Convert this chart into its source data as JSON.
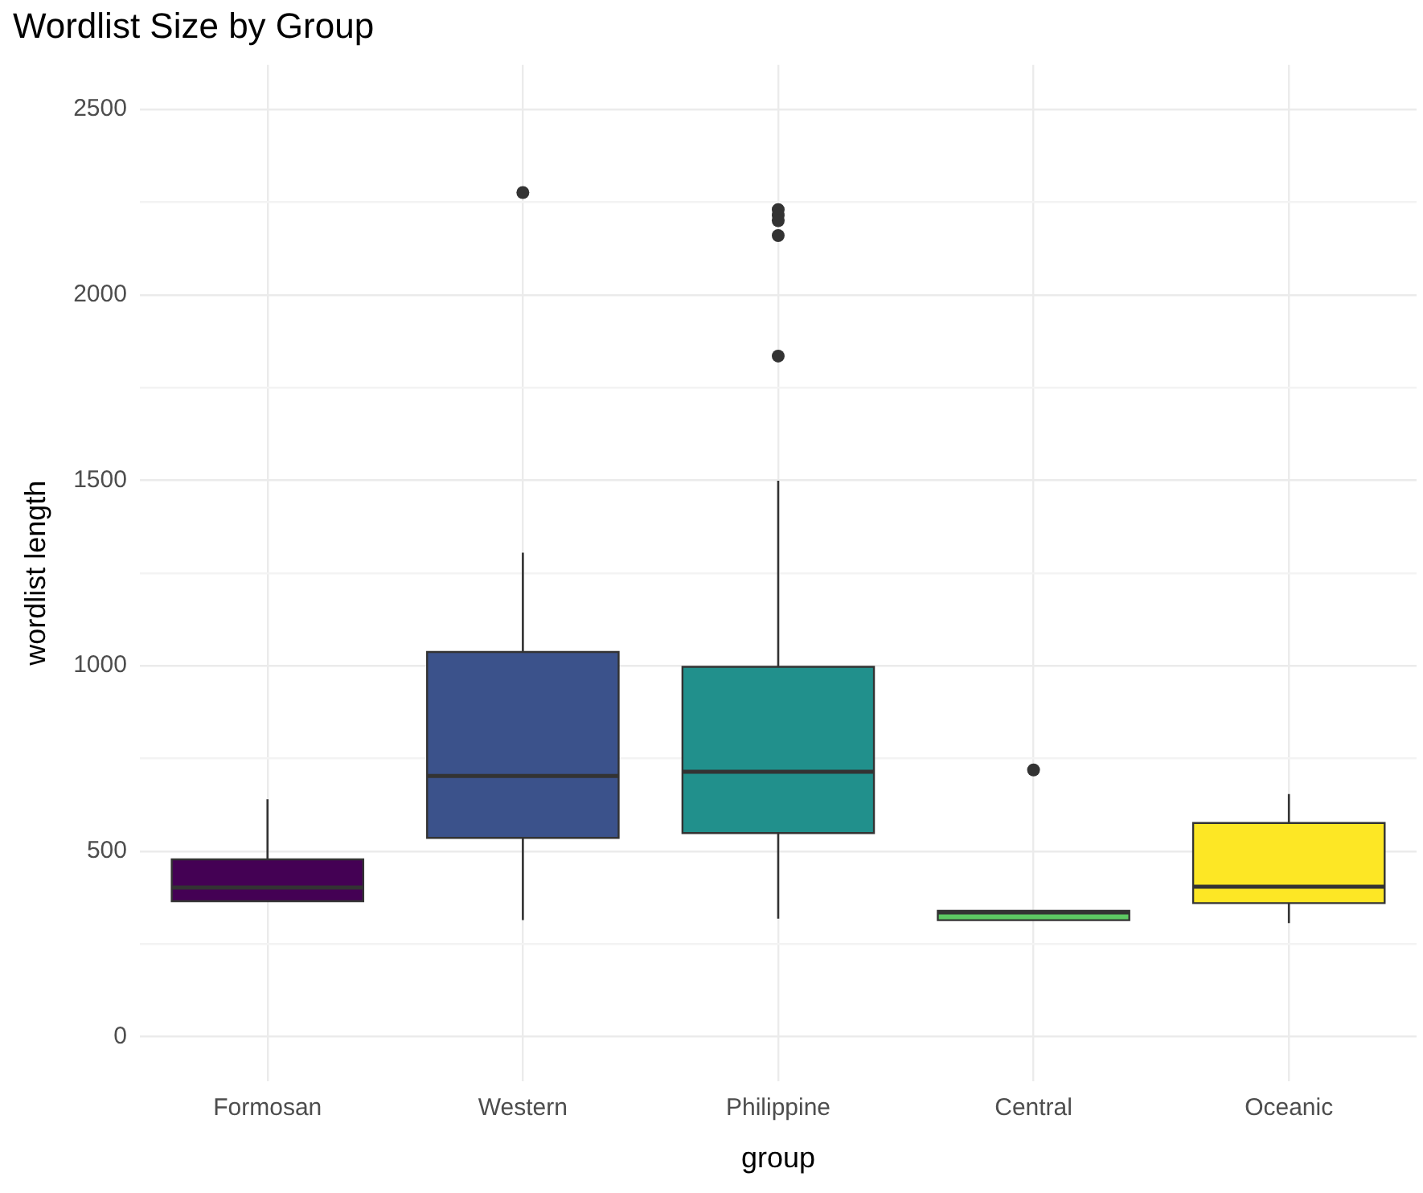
{
  "chart_data": {
    "type": "box",
    "title": "Wordlist Size by Group",
    "xlabel": "group",
    "ylabel": "wordlist length",
    "categories": [
      "Formosan",
      "Western",
      "Philippine",
      "Central",
      "Oceanic"
    ],
    "colors": [
      "#440154",
      "#3b528b",
      "#21908c",
      "#5dc863",
      "#fde725"
    ],
    "boxes": [
      {
        "low": 365,
        "q1": 365,
        "median": 402,
        "q3": 478,
        "high": 640
      },
      {
        "low": 314,
        "q1": 536,
        "median": 703,
        "q3": 1037,
        "high": 1305,
        "outliers": [
          2276
        ]
      },
      {
        "low": 318,
        "q1": 549,
        "median": 714,
        "q3": 997,
        "high": 1499,
        "outliers": [
          2230,
          2215,
          2200,
          2160,
          1835
        ]
      },
      {
        "low": 314,
        "q1": 314,
        "median": 335,
        "q3": 339,
        "high": 339,
        "outliers": [
          719
        ]
      },
      {
        "low": 306,
        "q1": 360,
        "median": 404,
        "q3": 576,
        "high": 654
      }
    ],
    "ylim": [
      -120,
      2620
    ],
    "yticks": [
      0,
      {
        "value": 250,
        "label": null
      },
      500,
      {
        "value": 750,
        "label": null
      },
      1000,
      {
        "value": 1250,
        "label": null
      },
      1500,
      {
        "value": 1750,
        "label": null
      },
      2000,
      {
        "value": 2250,
        "label": null
      },
      2500
    ],
    "grid": true
  }
}
